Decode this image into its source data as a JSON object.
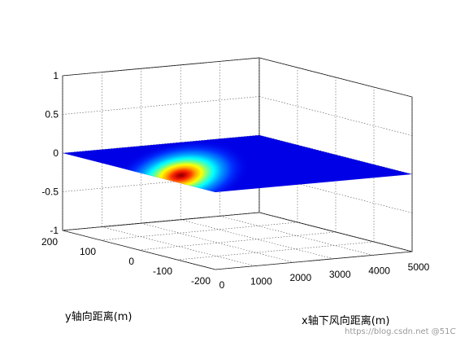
{
  "chart_data": {
    "type": "surface3d",
    "title": "",
    "xlabel": "x轴下风向距离(m)",
    "ylabel": "y轴向距离(m)",
    "zlabel": "",
    "xlim": [
      0,
      5000
    ],
    "ylim": [
      -200,
      200
    ],
    "zlim": [
      -1,
      1
    ],
    "xticks": [
      "0",
      "1000",
      "2000",
      "3000",
      "4000",
      "5000"
    ],
    "yticks": [
      "-200",
      "-100",
      "0",
      "100",
      "200"
    ],
    "zticks": [
      "-1",
      "-0.5",
      "0",
      "0.5",
      "1"
    ],
    "grid": true,
    "colormap": "jet",
    "surface": {
      "z_value": 0,
      "peak": {
        "x": 400,
        "y": -60
      }
    }
  },
  "watermark": "https://blog.csdn.net @51CTO博客"
}
